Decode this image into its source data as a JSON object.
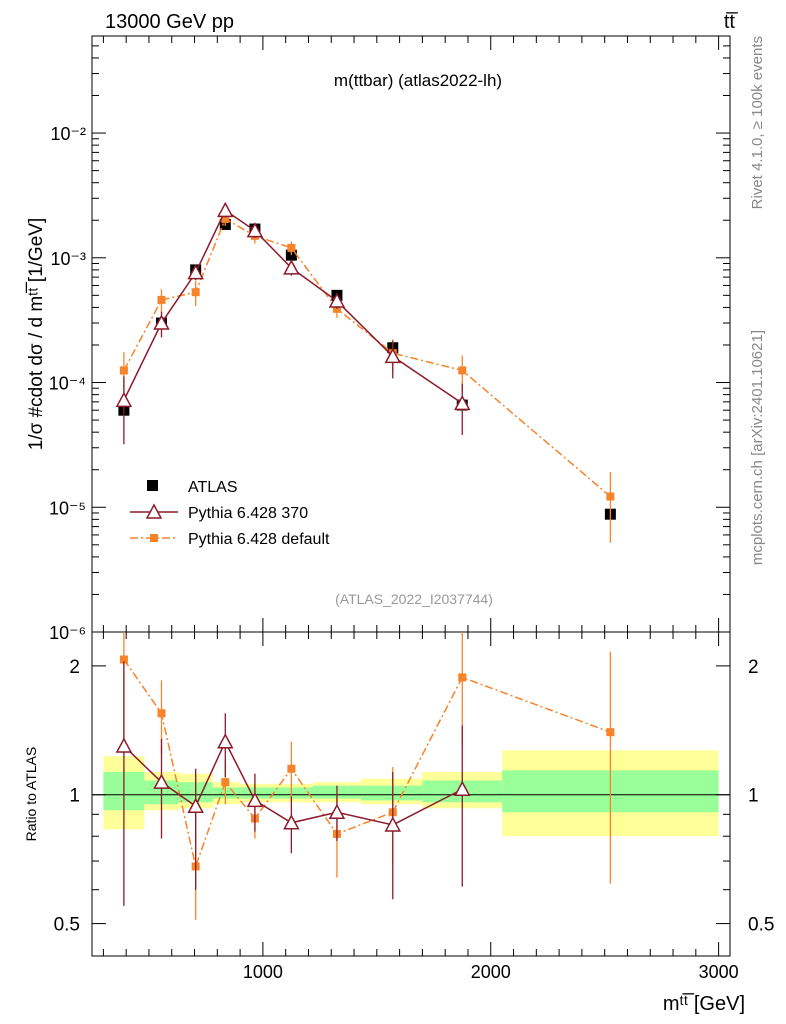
{
  "header": {
    "left": "13000 GeV pp",
    "right": "tt̅"
  },
  "side_labels": {
    "rivet": "Rivet 4.1.0, ≥ 100k events",
    "mcplots": "mcplots.cern.ch [arXiv:2401.10621]"
  },
  "chart_data": [
    {
      "type": "scatter",
      "panel": "main",
      "title": "m(ttbar) (atlas2022-lh)",
      "watermark": "(ATLAS_2022_I2037744)",
      "ylabel": "1/σ #cdot dσ / d mᵗᵗ̅ [1/GeV]",
      "yscale": "log",
      "ylim": [
        1e-06,
        0.06
      ],
      "xlim": [
        250,
        3050
      ],
      "ytick_labels": [
        "10⁻⁶",
        "10⁻⁵",
        "10⁻⁴",
        "10⁻³",
        "10⁻²"
      ],
      "ytick_values": [
        1e-06,
        1e-05,
        0.0001,
        0.001,
        0.01
      ],
      "legend_position": "lower-left",
      "series": [
        {
          "name": "ATLAS",
          "color": "#000000",
          "marker": "square",
          "x": [
            390,
            555,
            705,
            835,
            965,
            1125,
            1325,
            1570,
            1875,
            2525
          ],
          "y": [
            6e-05,
            0.0003,
            0.0008,
            0.00185,
            0.0017,
            0.00105,
            0.0005,
            0.00019,
            6.6e-05,
            8.8e-06
          ],
          "yerr_lo": [
            5.5e-05,
            0.00028,
            0.00075,
            0.00175,
            0.0016,
            0.001,
            0.00047,
            0.00018,
            6.3e-05,
            8.3e-06
          ],
          "yerr_hi": [
            6.5e-05,
            0.00032,
            0.00085,
            0.00195,
            0.0018,
            0.0011,
            0.00053,
            0.0002,
            6.9e-05,
            9.3e-06
          ]
        },
        {
          "name": "Pythia 6.428 370",
          "color": "#8b1a2b",
          "marker": "triangle",
          "line": "solid",
          "x": [
            390,
            555,
            705,
            835,
            965,
            1125,
            1325,
            1570,
            1875
          ],
          "y": [
            7.2e-05,
            0.0003,
            0.00076,
            0.0024,
            0.00165,
            0.00083,
            0.00045,
            0.000162,
            6.8e-05
          ],
          "yerr_lo": [
            3.2e-05,
            0.00023,
            0.00066,
            0.0021,
            0.00145,
            0.00072,
            0.00039,
            0.000108,
            3.8e-05
          ],
          "yerr_hi": [
            0.000112,
            0.00037,
            0.00086,
            0.0027,
            0.00185,
            0.00094,
            0.00051,
            0.000216,
            9.8e-05
          ]
        },
        {
          "name": "Pythia 6.428 default",
          "color": "#f7832a",
          "marker": "square-small",
          "line": "dashdot",
          "x": [
            390,
            555,
            705,
            835,
            965,
            1125,
            1325,
            1570,
            1875,
            2525
          ],
          "y": [
            0.000125,
            0.00046,
            0.00053,
            0.00205,
            0.0015,
            0.0012,
            0.00039,
            0.000172,
            0.000125,
            1.22e-05
          ],
          "yerr_lo": [
            7.5e-05,
            0.00036,
            0.00041,
            0.0018,
            0.0013,
            0.00105,
            0.00033,
            0.000122,
            8.5e-05,
            5.2e-06
          ],
          "yerr_hi": [
            0.000175,
            0.00056,
            0.00065,
            0.0023,
            0.0017,
            0.00135,
            0.00045,
            0.000222,
            0.000165,
            1.92e-05
          ]
        }
      ]
    },
    {
      "type": "scatter",
      "panel": "ratio",
      "ylabel": "Ratio to ATLAS",
      "xlabel": "mᵗᵗ̅ [GeV]",
      "yscale": "log",
      "ylim": [
        0.42,
        2.4
      ],
      "xlim": [
        250,
        3050
      ],
      "ytick_labels": [
        "0.5",
        "1",
        "2"
      ],
      "ytick_values": [
        0.5,
        1,
        2
      ],
      "xtick_labels": [
        "1000",
        "2000",
        "3000"
      ],
      "xtick_values": [
        1000,
        2000,
        3000
      ],
      "bands": {
        "edges": [
          300,
          480,
          630,
          780,
          900,
          1030,
          1220,
          1430,
          1700,
          2050,
          3000
        ],
        "yellow_lo": [
          0.83,
          0.92,
          0.93,
          0.95,
          0.96,
          0.96,
          0.96,
          0.95,
          0.93,
          0.8
        ],
        "yellow_hi": [
          1.23,
          1.13,
          1.12,
          1.07,
          1.06,
          1.06,
          1.07,
          1.09,
          1.13,
          1.27
        ],
        "green_lo": [
          0.92,
          0.95,
          0.96,
          0.98,
          0.98,
          0.98,
          0.98,
          0.97,
          0.96,
          0.91
        ],
        "green_hi": [
          1.13,
          1.08,
          1.07,
          1.04,
          1.04,
          1.04,
          1.05,
          1.05,
          1.08,
          1.14
        ]
      },
      "series": [
        {
          "name": "Pythia 6.428 370",
          "color": "#8b1a2b",
          "x": [
            390,
            555,
            705,
            835,
            965,
            1125,
            1325,
            1570,
            1875
          ],
          "y": [
            1.3,
            1.07,
            0.94,
            1.33,
            0.97,
            0.86,
            0.91,
            0.85,
            1.03
          ],
          "yerr_lo": [
            0.55,
            0.79,
            0.6,
            1.1,
            0.82,
            0.73,
            0.78,
            0.57,
            0.61
          ],
          "yerr_hi": [
            2.05,
            1.35,
            1.15,
            1.55,
            1.12,
            0.99,
            1.05,
            1.13,
            1.45
          ]
        },
        {
          "name": "Pythia 6.428 default",
          "color": "#f7832a",
          "x": [
            390,
            555,
            705,
            835,
            965,
            1125,
            1325,
            1570,
            1875,
            2525
          ],
          "y": [
            2.07,
            1.55,
            0.68,
            1.07,
            0.88,
            1.15,
            0.81,
            0.91,
            1.88,
            1.4
          ],
          "yerr_lo": [
            1.25,
            1.25,
            0.51,
            0.95,
            0.79,
            0.97,
            0.64,
            0.69,
            1.3,
            0.62
          ],
          "yerr_hi": [
            2.5,
            1.85,
            1.12,
            1.2,
            1.06,
            1.33,
            0.99,
            1.16,
            2.4,
            2.16
          ]
        }
      ]
    }
  ]
}
